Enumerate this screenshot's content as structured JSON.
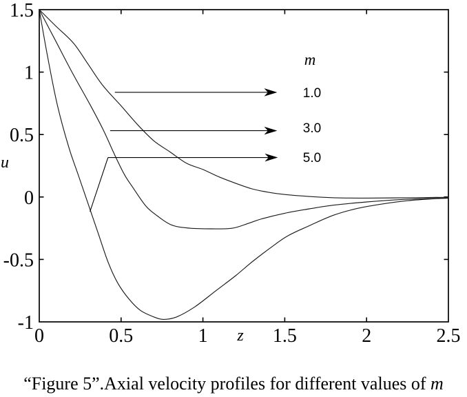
{
  "figure": {
    "caption": {
      "text": "“Figure 5”.Axial velocity profiles for different values of ",
      "italic_suffix": "m"
    }
  },
  "chart_data": {
    "type": "line",
    "title": "",
    "xlabel": "z",
    "ylabel": "u",
    "xlim": [
      0,
      2.5
    ],
    "ylim": [
      -1,
      1.5
    ],
    "grid": false,
    "box": true,
    "line_color": "#1a1a1a",
    "xticks": {
      "values": [
        0,
        0.5,
        1,
        1.5,
        2,
        2.5
      ],
      "labels": [
        "0",
        "0.5",
        "1",
        "1.5",
        "2",
        "2.5"
      ]
    },
    "yticks": {
      "values": [
        -1,
        -0.5,
        0,
        0.5,
        1,
        1.5
      ],
      "labels": [
        "-1",
        "-0.5",
        "0",
        "0.5",
        "1",
        "1.5"
      ]
    },
    "legend": {
      "header": "m",
      "entries": [
        "1.0",
        "3.0",
        "5.0"
      ],
      "position": "inside-upper-right-with-arrows"
    },
    "series": [
      {
        "name": "m-1.0",
        "m": 1.0,
        "points": [
          [
            0,
            1.5
          ],
          [
            0.1,
            1.37
          ],
          [
            0.21,
            1.23
          ],
          [
            0.3,
            1.06
          ],
          [
            0.39,
            0.89
          ],
          [
            0.5,
            0.73
          ],
          [
            0.6,
            0.58
          ],
          [
            0.7,
            0.45
          ],
          [
            0.8,
            0.36
          ],
          [
            0.9,
            0.27
          ],
          [
            1.0,
            0.22
          ],
          [
            1.1,
            0.16
          ],
          [
            1.2,
            0.11
          ],
          [
            1.3,
            0.065
          ],
          [
            1.4,
            0.038
          ],
          [
            1.5,
            0.02
          ],
          [
            1.65,
            0.004
          ],
          [
            1.8,
            -0.006
          ],
          [
            2.0,
            -0.009
          ],
          [
            2.25,
            -0.006
          ],
          [
            2.5,
            -0.002
          ]
        ]
      },
      {
        "name": "m-3.0",
        "m": 3.0,
        "points": [
          [
            0,
            1.5
          ],
          [
            0.1,
            1.25
          ],
          [
            0.2,
            1.0
          ],
          [
            0.31,
            0.74
          ],
          [
            0.39,
            0.54
          ],
          [
            0.46,
            0.34
          ],
          [
            0.52,
            0.18
          ],
          [
            0.57,
            0.08
          ],
          [
            0.65,
            -0.07
          ],
          [
            0.72,
            -0.15
          ],
          [
            0.81,
            -0.225
          ],
          [
            0.92,
            -0.25
          ],
          [
            1.05,
            -0.255
          ],
          [
            1.18,
            -0.25
          ],
          [
            1.28,
            -0.21
          ],
          [
            1.36,
            -0.175
          ],
          [
            1.5,
            -0.13
          ],
          [
            1.65,
            -0.095
          ],
          [
            1.8,
            -0.065
          ],
          [
            2.0,
            -0.04
          ],
          [
            2.25,
            -0.018
          ],
          [
            2.5,
            -0.008
          ]
        ]
      },
      {
        "name": "m-5.0",
        "m": 5.0,
        "points": [
          [
            0,
            1.5
          ],
          [
            0.05,
            1.13
          ],
          [
            0.11,
            0.74
          ],
          [
            0.18,
            0.4
          ],
          [
            0.24,
            0.17
          ],
          [
            0.3,
            -0.06
          ],
          [
            0.36,
            -0.29
          ],
          [
            0.42,
            -0.52
          ],
          [
            0.48,
            -0.69
          ],
          [
            0.55,
            -0.82
          ],
          [
            0.62,
            -0.91
          ],
          [
            0.7,
            -0.96
          ],
          [
            0.76,
            -0.98
          ],
          [
            0.84,
            -0.96
          ],
          [
            0.95,
            -0.88
          ],
          [
            1.08,
            -0.75
          ],
          [
            1.2,
            -0.63
          ],
          [
            1.3,
            -0.52
          ],
          [
            1.42,
            -0.4
          ],
          [
            1.52,
            -0.31
          ],
          [
            1.65,
            -0.23
          ],
          [
            1.8,
            -0.145
          ],
          [
            1.95,
            -0.09
          ],
          [
            2.1,
            -0.055
          ],
          [
            2.25,
            -0.03
          ],
          [
            2.4,
            -0.015
          ],
          [
            2.5,
            -0.01
          ]
        ]
      }
    ],
    "annotations": {
      "arrows": [
        {
          "entry": "1.0",
          "u": 0.838,
          "z_from": 0.462,
          "z_to": 1.454
        },
        {
          "entry": "3.0",
          "u": 0.531,
          "z_from": 0.433,
          "z_to": 1.454
        },
        {
          "entry": "5.0",
          "u": 0.316,
          "z_from": 0.42,
          "z_to": 1.458
        }
      ],
      "leader_line": {
        "from": [
          0.31,
          -0.117
        ],
        "to": [
          0.42,
          0.316
        ]
      }
    }
  }
}
